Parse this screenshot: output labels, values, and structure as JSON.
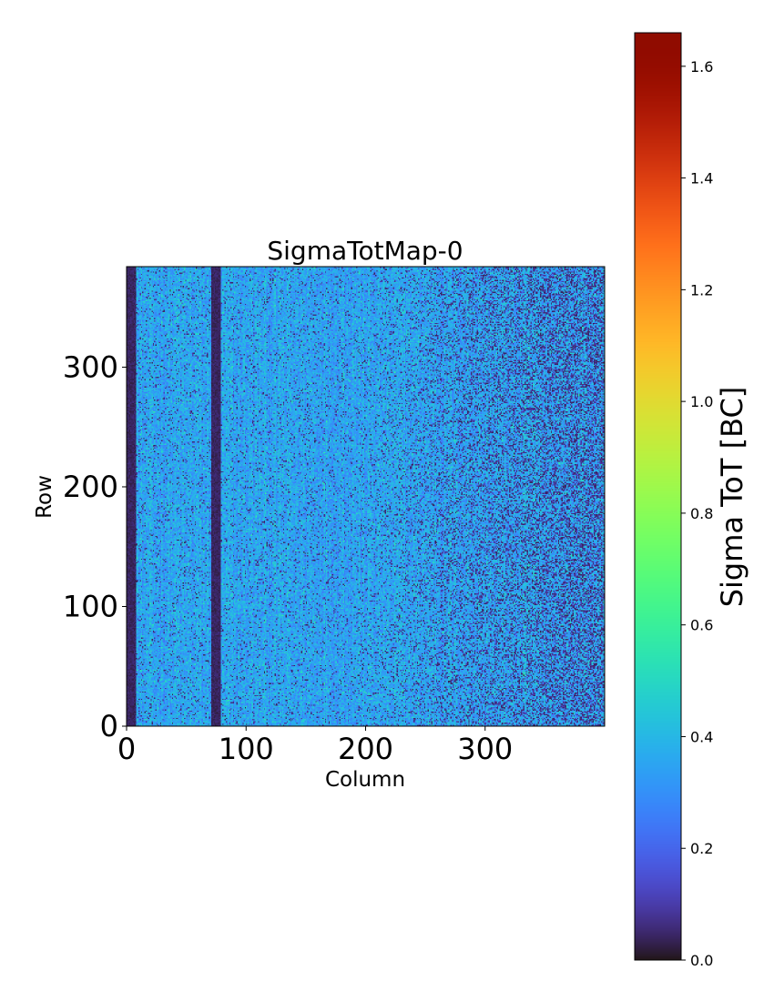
{
  "chart_data": {
    "type": "heatmap",
    "title": "SigmaTotMap-0",
    "xlabel": "Column",
    "ylabel": "Row",
    "xlim": [
      0,
      400
    ],
    "ylim": [
      0,
      384
    ],
    "n_columns": 400,
    "n_rows": 384,
    "xticks": [
      0,
      100,
      200,
      300
    ],
    "xtick_labels": [
      "0",
      "100",
      "200",
      "300"
    ],
    "yticks": [
      0,
      100,
      200,
      300
    ],
    "ytick_labels": [
      "0",
      "100",
      "200",
      "300"
    ],
    "colormap": "turbo",
    "typical_value": 0.35,
    "dead_column_bands": [
      [
        0,
        8
      ],
      [
        71,
        79
      ]
    ],
    "colorbar": {
      "label": "Sigma ToT [BC]",
      "range": [
        0.0,
        1.66
      ],
      "ticks": [
        0.0,
        0.2,
        0.4,
        0.6,
        0.8,
        1.0,
        1.2,
        1.4,
        1.6
      ],
      "tick_labels": [
        "0.0",
        "0.2",
        "0.4",
        "0.6",
        "0.8",
        "1.0",
        "1.2",
        "1.4",
        "1.6"
      ]
    }
  }
}
